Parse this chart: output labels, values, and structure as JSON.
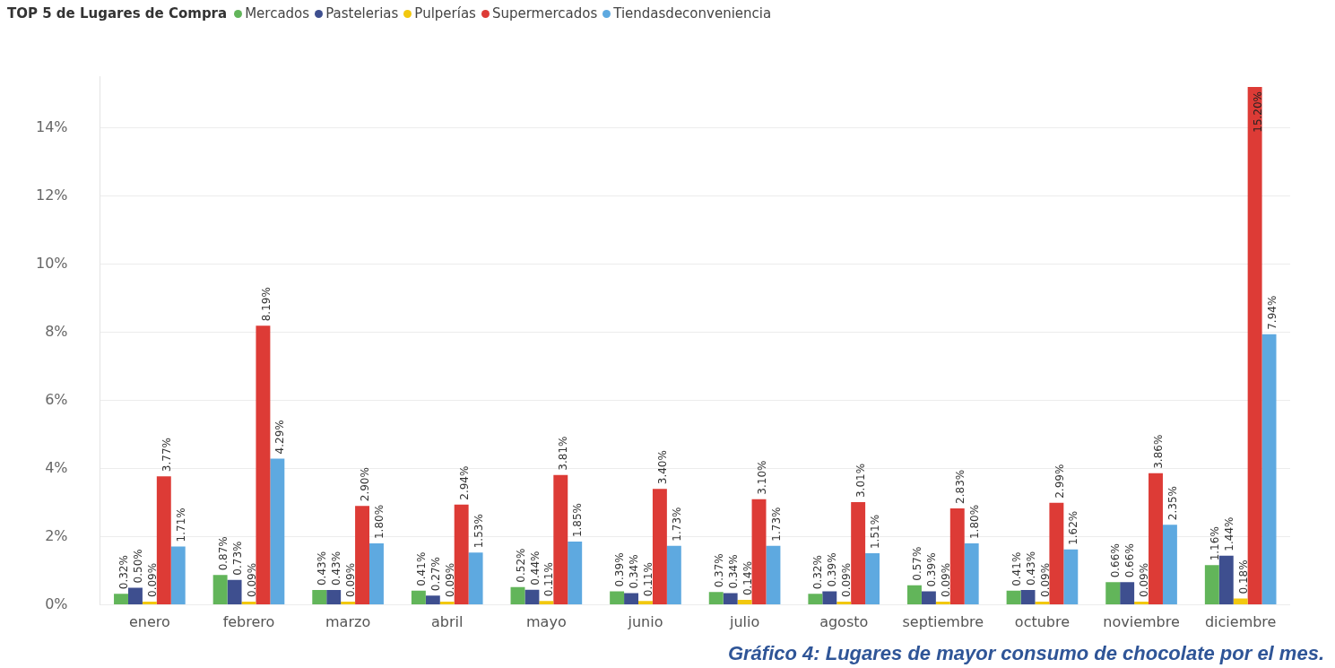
{
  "chart_data": {
    "type": "bar",
    "legend_title": "TOP 5 de Lugares de Compra",
    "legend": "top left",
    "categories": [
      "enero",
      "febrero",
      "marzo",
      "abril",
      "mayo",
      "junio",
      "julio",
      "agosto",
      "septiembre",
      "octubre",
      "noviembre",
      "diciembre"
    ],
    "series": [
      {
        "name": "Mercados",
        "color": "#62b55a",
        "values": [
          0.32,
          0.87,
          0.43,
          0.41,
          0.52,
          0.39,
          0.37,
          0.32,
          0.57,
          0.41,
          0.66,
          1.16
        ],
        "value_labels": [
          "0.32%",
          "0.87%",
          "0.43%",
          "0.41%",
          "0.52%",
          "0.39%",
          "0.37%",
          "0.32%",
          "0.57%",
          "0.41%",
          "0.66%",
          "1.16%"
        ]
      },
      {
        "name": "Pastelerias",
        "color": "#3e4f8f",
        "values": [
          0.5,
          0.73,
          0.43,
          0.27,
          0.44,
          0.34,
          0.34,
          0.39,
          0.39,
          0.43,
          0.66,
          1.44
        ],
        "value_labels": [
          "0.50%",
          "0.73%",
          "0.43%",
          "0.27%",
          "0.44%",
          "0.34%",
          "0.34%",
          "0.39%",
          "0.39%",
          "0.43%",
          "0.66%",
          "1.44%"
        ]
      },
      {
        "name": "Pulperías",
        "color": "#f2c80f",
        "values": [
          0.09,
          0.09,
          0.09,
          0.09,
          0.11,
          0.11,
          0.14,
          0.09,
          0.09,
          0.09,
          0.09,
          0.18
        ],
        "value_labels": [
          "0.09%",
          "0.09%",
          "0.09%",
          "0.09%",
          "0.11%",
          "0.11%",
          "0.14%",
          "0.09%",
          "0.09%",
          "0.09%",
          "0.09%",
          "0.18%"
        ]
      },
      {
        "name": "Supermercados",
        "color": "#dd3b36",
        "values": [
          3.77,
          8.19,
          2.9,
          2.94,
          3.81,
          3.4,
          3.1,
          3.01,
          2.83,
          2.99,
          3.86,
          15.2
        ],
        "value_labels": [
          "3.77%",
          "8.19%",
          "2.90%",
          "2.94%",
          "3.81%",
          "3.40%",
          "3.10%",
          "3.01%",
          "2.83%",
          "2.99%",
          "3.86%",
          "15.20%"
        ]
      },
      {
        "name": "Tiendasdeconveniencia",
        "color": "#5ea9e0",
        "values": [
          1.71,
          4.29,
          1.8,
          1.53,
          1.85,
          1.73,
          1.73,
          1.51,
          1.8,
          1.62,
          2.35,
          7.94
        ],
        "value_labels": [
          "1.71%",
          "4.29%",
          "1.80%",
          "1.53%",
          "1.85%",
          "1.73%",
          "1.73%",
          "1.51%",
          "1.80%",
          "1.62%",
          "2.35%",
          "7.94%"
        ]
      }
    ],
    "ylim": [
      0,
      15.5
    ],
    "yticks": [
      {
        "value": 0,
        "label": "0%"
      },
      {
        "value": 2,
        "label": "2%"
      },
      {
        "value": 4,
        "label": "4%"
      },
      {
        "value": 6,
        "label": "6%"
      },
      {
        "value": 8,
        "label": "8%"
      },
      {
        "value": 10,
        "label": "10%"
      },
      {
        "value": 12,
        "label": "12%"
      },
      {
        "value": 14,
        "label": "14%"
      }
    ],
    "grid": "y",
    "annotations": [
      "Gráfico 4: Lugares de mayor consumo de chocolate por el mes."
    ]
  }
}
